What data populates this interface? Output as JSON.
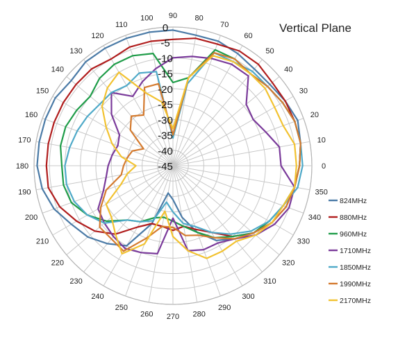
{
  "chart_data": {
    "type": "polar-line",
    "title": "Vertical Plane",
    "angle_unit": "deg",
    "angle_ticks": [
      0,
      10,
      20,
      30,
      40,
      50,
      60,
      70,
      80,
      90,
      100,
      110,
      120,
      130,
      140,
      150,
      160,
      170,
      180,
      190,
      200,
      210,
      220,
      230,
      240,
      250,
      260,
      270,
      280,
      290,
      300,
      310,
      320,
      330,
      340,
      350
    ],
    "radial_ticks": [
      0,
      -5,
      -10,
      -15,
      -20,
      -25,
      -30,
      -35,
      -40,
      -45
    ],
    "rlim": [
      -45,
      0
    ],
    "grid": true,
    "legend_position": "right",
    "angles": [
      0,
      10,
      20,
      30,
      40,
      50,
      60,
      70,
      80,
      90,
      100,
      110,
      120,
      130,
      140,
      150,
      160,
      170,
      180,
      190,
      200,
      210,
      220,
      230,
      240,
      250,
      260,
      270,
      280,
      290,
      300,
      310,
      320,
      330,
      340,
      350
    ],
    "series": [
      {
        "name": "824MHz",
        "color": "#4a7aa6",
        "values": [
          -4,
          -3,
          -2,
          -3,
          -4,
          -4,
          -3,
          -2,
          -2,
          -1,
          -1,
          -1,
          -1,
          -1,
          -2,
          -1,
          -1,
          -1,
          -1,
          -2,
          -4,
          -7,
          -9,
          -12,
          -15,
          -25,
          -36,
          -34,
          -28,
          -22,
          -17,
          -14,
          -11,
          -9,
          -7,
          -5
        ]
      },
      {
        "name": "880MHz",
        "color": "#b01c1c",
        "values": [
          -4,
          -3,
          -3,
          -3,
          -3,
          -2,
          -2,
          -3,
          -3,
          -4,
          -4,
          -4,
          -5,
          -4,
          -4,
          -4,
          -4,
          -4,
          -4,
          -4,
          -6,
          -9,
          -12,
          -16,
          -22,
          -25,
          -25,
          -24,
          -25,
          -23,
          -20,
          -15,
          -11,
          -8,
          -6,
          -5
        ]
      },
      {
        "name": "960MHz",
        "color": "#1e9c48",
        "values": [
          -4,
          -3,
          -3,
          -4,
          -5,
          -6,
          -5,
          -5,
          -16,
          -18,
          -8,
          -7,
          -7,
          -8,
          -10,
          -9,
          -8,
          -8,
          -9,
          -9,
          -10,
          -13,
          -17,
          -22,
          -24,
          -27,
          -28,
          -27,
          -25,
          -22,
          -18,
          -15,
          -11,
          -9,
          -7,
          -5
        ]
      },
      {
        "name": "1710MHz",
        "color": "#7a3a9a",
        "values": [
          -10,
          -10,
          -13,
          -15,
          -14,
          -7,
          -7,
          -8,
          -9,
          -10,
          -13,
          -16,
          -19,
          -14,
          -19,
          -25,
          -26,
          -25,
          -24,
          -23,
          -21,
          -17,
          -16,
          -15,
          -14,
          -15,
          -16,
          -28,
          -17,
          -16,
          -16,
          -14,
          -10,
          -7,
          -5,
          -5
        ]
      },
      {
        "name": "1850MHz",
        "color": "#4ea9c8",
        "values": [
          -3,
          -3,
          -3,
          -4,
          -5,
          -5,
          -6,
          -6,
          -18,
          -36,
          -14,
          -13,
          -15,
          -14,
          -14,
          -13,
          -12,
          -11,
          -10,
          -10,
          -11,
          -13,
          -16,
          -22,
          -24,
          -26,
          -33,
          -30,
          -26,
          -24,
          -20,
          -16,
          -12,
          -9,
          -7,
          -4
        ]
      },
      {
        "name": "1990MHz",
        "color": "#d47a2e",
        "values": [
          -4,
          -3,
          -3,
          -4,
          -5,
          -6,
          -5,
          -6,
          -16,
          -35,
          -18,
          -18,
          -26,
          -24,
          -27,
          -34,
          -31,
          -30,
          -29,
          -28,
          -22,
          -18,
          -14,
          -14,
          -13,
          -20,
          -25,
          -25,
          -22,
          -21,
          -18,
          -14,
          -11,
          -8,
          -6,
          -5
        ]
      },
      {
        "name": "2170MHz",
        "color": "#f2c230",
        "values": [
          -5,
          -5,
          -7,
          -7,
          -6,
          -6,
          -6,
          -7,
          -16,
          -33,
          -24,
          -20,
          -10,
          -12,
          -15,
          -20,
          -24,
          -28,
          -33,
          -30,
          -27,
          -20,
          -19,
          -16,
          -12,
          -18,
          -30,
          -22,
          -17,
          -13,
          -13,
          -13,
          -10,
          -8,
          -7,
          -5
        ]
      }
    ]
  }
}
